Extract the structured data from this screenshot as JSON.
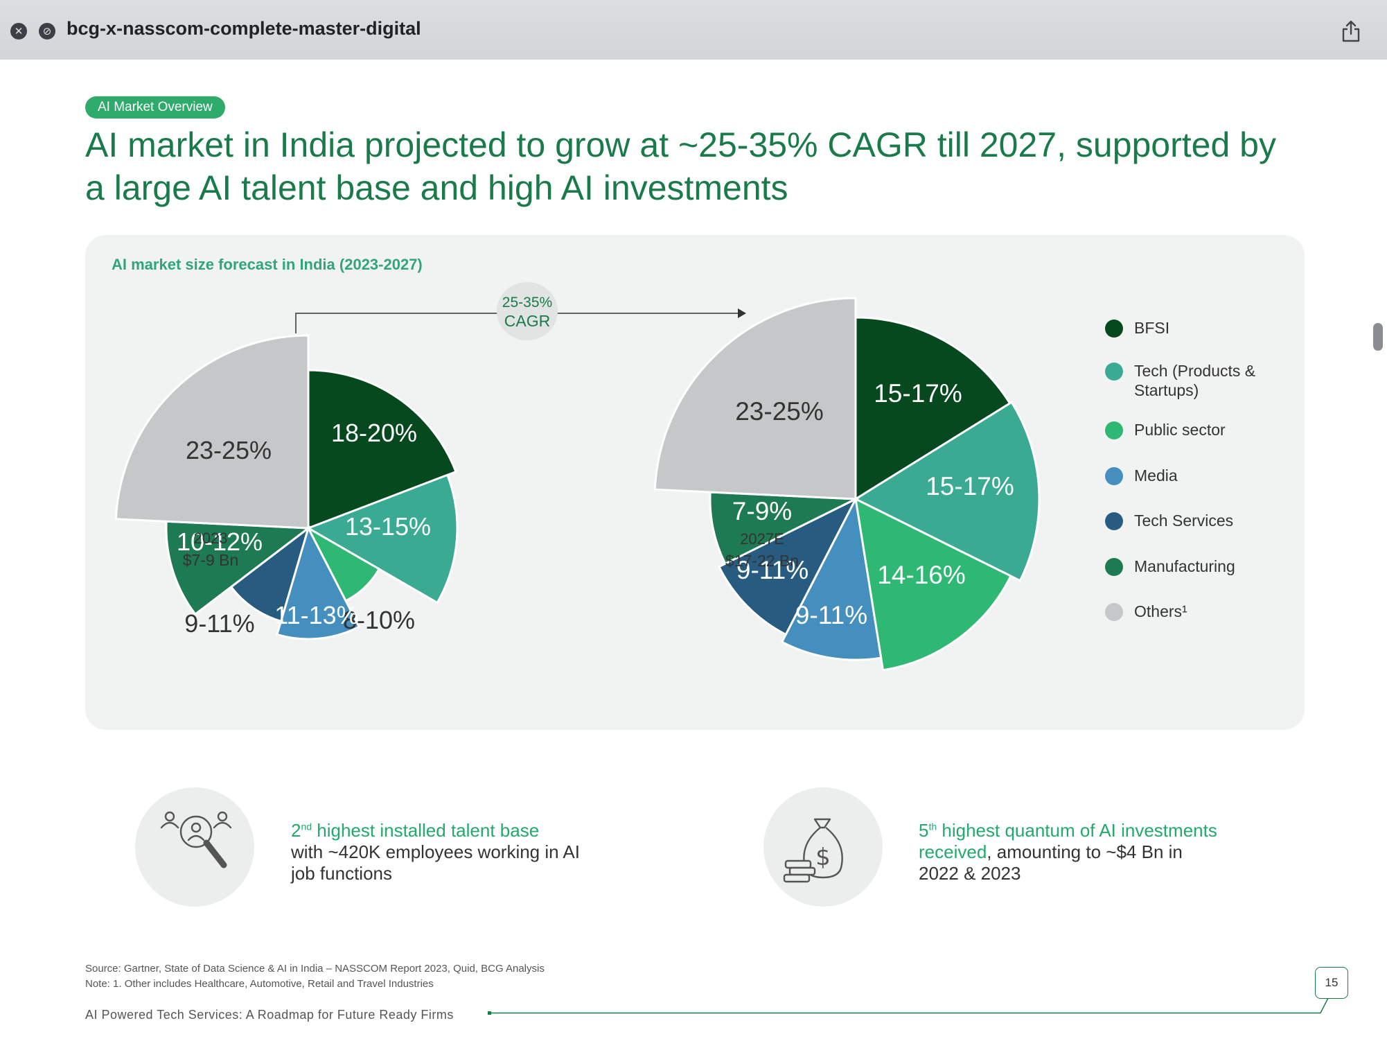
{
  "window": {
    "title": "bcg-x-nasscom-complete-master-digital"
  },
  "slide": {
    "tag": "AI Market Overview",
    "headline": "AI market in India projected to grow at ~25-35% CAGR till 2027, supported by a large AI talent base and high AI investments",
    "chart_title": "AI market size forecast in India (2023-2027)",
    "cagr_line1": "25-35%",
    "cagr_line2": "CAGR",
    "stat1": {
      "hl_num": "2",
      "hl_sup": "nd",
      "hl_rest": " highest installed talent base",
      "body": "with ~420K employees working in AI job functions"
    },
    "stat2": {
      "hl_num": "5",
      "hl_sup": "th",
      "hl_rest": " highest quantum of AI investments received",
      "body": ", amounting to ~$4 Bn in 2022 & 2023"
    },
    "source": "Source: Gartner, State of Data Science & AI in India – NASSCOM Report 2023, Quid, BCG Analysis",
    "note": "Note: 1. Other includes Healthcare, Automotive, Retail and Travel Industries",
    "footer": "AI Powered Tech Services: A Roadmap for Future Ready Firms",
    "page_number": "15"
  },
  "colors": {
    "accent": "#197a4a",
    "BFSI": "#06491f",
    "Tech (Products & Startups)": "#3aab92",
    "Public sector": "#2eb873",
    "Media": "#448fbd",
    "Tech Services": "#275c80",
    "Manufacturing": "#1e7a52",
    "Others": "#c6c7c9"
  },
  "chart_data": [
    {
      "type": "pie",
      "title": "AI market size forecast in India (2023-2027)",
      "year_label": "2023",
      "total_label": "$7-9 Bn",
      "categories": [
        "BFSI",
        "Tech (Products & Startups)",
        "Public sector",
        "Media",
        "Tech Services",
        "Manufacturing",
        "Others¹"
      ],
      "value_labels": [
        "18-20%",
        "13-15%",
        "8-10%",
        "11-13%",
        "9-11%",
        "10-12%",
        "23-25%"
      ],
      "values": [
        19,
        14,
        9,
        12,
        10,
        11,
        24
      ],
      "legend_position": "right"
    },
    {
      "type": "pie",
      "year_label": "2027E",
      "total_label": "$17-22 Bn",
      "categories": [
        "BFSI",
        "Tech (Products & Startups)",
        "Public sector",
        "Media",
        "Tech Services",
        "Manufacturing",
        "Others¹"
      ],
      "value_labels": [
        "15-17%",
        "15-17%",
        "14-16%",
        "9-11%",
        "9-11%",
        "7-9%",
        "23-25%"
      ],
      "values": [
        16,
        16,
        15,
        10,
        10,
        8,
        24
      ],
      "legend_position": "right"
    }
  ],
  "legend": [
    "BFSI",
    "Tech (Products & Startups)",
    "Public sector",
    "Media",
    "Tech Services",
    "Manufacturing",
    "Others¹"
  ]
}
